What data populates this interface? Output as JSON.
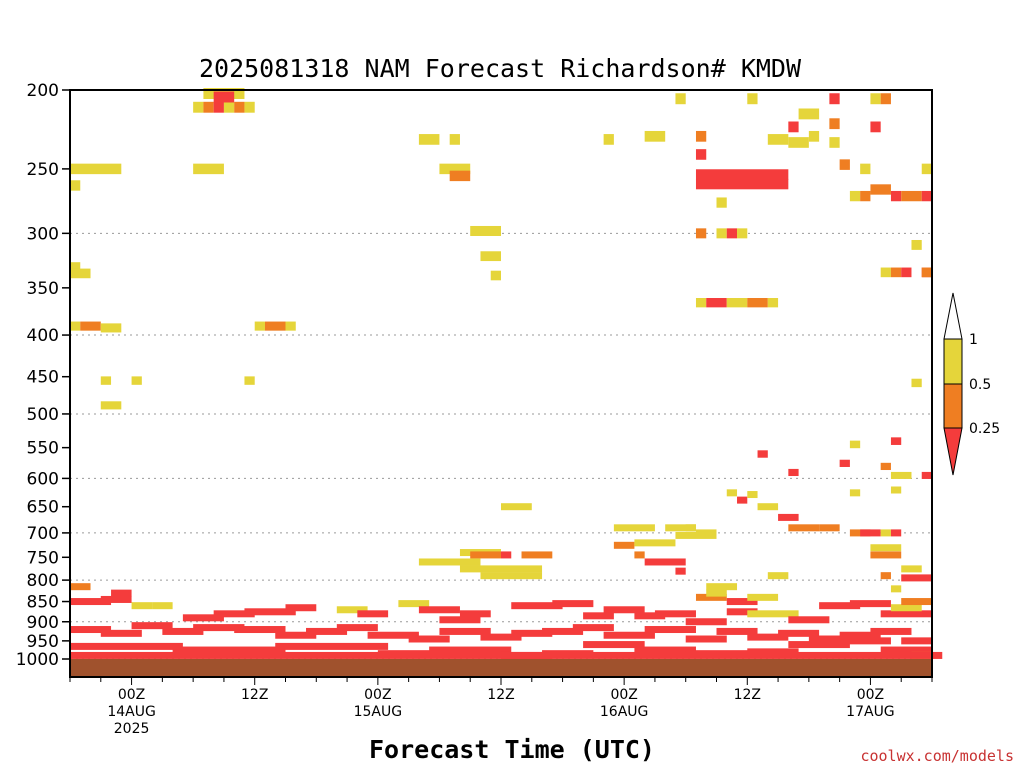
{
  "chart_data": {
    "type": "heatmap",
    "title": "2025081318 NAM Forecast Richardson# KMDW",
    "xlabel": "Forecast Time (UTC)",
    "ylabel": "",
    "credit": "coolwx.com/models",
    "y_scale": "log-pressure",
    "ylim": [
      1000,
      200
    ],
    "y_ticks": [
      200,
      250,
      300,
      350,
      400,
      450,
      500,
      550,
      600,
      650,
      700,
      750,
      800,
      850,
      900,
      950,
      1000
    ],
    "grid_levels": [
      300,
      400,
      500,
      600,
      700,
      800,
      900,
      1000
    ],
    "time_start": "2025-08-13 18Z",
    "time_step_hours": 1,
    "num_hours": 84,
    "x_ticks": [
      {
        "hour": 6,
        "lines": [
          "00Z",
          "14AUG",
          "2025"
        ]
      },
      {
        "hour": 18,
        "lines": [
          "12Z"
        ]
      },
      {
        "hour": 30,
        "lines": [
          "00Z",
          "15AUG"
        ]
      },
      {
        "hour": 42,
        "lines": [
          "12Z"
        ]
      },
      {
        "hour": 54,
        "lines": [
          "00Z",
          "16AUG"
        ]
      },
      {
        "hour": 66,
        "lines": [
          "12Z"
        ]
      },
      {
        "hour": 78,
        "lines": [
          "00Z",
          "17AUG"
        ]
      }
    ],
    "legend": {
      "placement": "right",
      "labels": [
        "1",
        "0.5",
        "0.25"
      ],
      "classes": [
        {
          "range": "> 1",
          "color": "#ffffff"
        },
        {
          "range": "0.5 - 1",
          "color": "#e5d53a"
        },
        {
          "range": "0.25 - 0.5",
          "color": "#ef7e22"
        },
        {
          "range": "< 0.25",
          "color": "#f43c3c"
        }
      ]
    },
    "ground_color": "#a0522d",
    "cells": [
      [
        12,
        12,
        210,
        "Y"
      ],
      [
        13,
        13,
        210,
        "O"
      ],
      [
        14,
        14,
        210,
        "R"
      ],
      [
        15,
        15,
        210,
        "Y"
      ],
      [
        16,
        16,
        210,
        "O"
      ],
      [
        17,
        17,
        210,
        "Y"
      ],
      [
        13,
        16,
        202,
        "Y"
      ],
      [
        14,
        15,
        204,
        "R"
      ],
      [
        0,
        4,
        250,
        "Y"
      ],
      [
        0,
        0,
        262,
        "Y"
      ],
      [
        12,
        14,
        250,
        "Y"
      ],
      [
        34,
        35,
        230,
        "Y"
      ],
      [
        37,
        37,
        230,
        "Y"
      ],
      [
        36,
        38,
        250,
        "Y"
      ],
      [
        37,
        38,
        255,
        "O"
      ],
      [
        52,
        52,
        230,
        "Y"
      ],
      [
        56,
        57,
        228,
        "Y"
      ],
      [
        59,
        59,
        205,
        "Y"
      ],
      [
        61,
        61,
        228,
        "O"
      ],
      [
        61,
        61,
        240,
        "R"
      ],
      [
        61,
        69,
        254,
        "R"
      ],
      [
        61,
        69,
        261,
        "R"
      ],
      [
        63,
        63,
        275,
        "Y"
      ],
      [
        66,
        66,
        205,
        "Y"
      ],
      [
        68,
        69,
        230,
        "Y"
      ],
      [
        70,
        70,
        222,
        "R"
      ],
      [
        70,
        71,
        232,
        "Y"
      ],
      [
        71,
        72,
        214,
        "Y"
      ],
      [
        72,
        72,
        228,
        "Y"
      ],
      [
        74,
        74,
        205,
        "R"
      ],
      [
        74,
        74,
        220,
        "O"
      ],
      [
        74,
        74,
        232,
        "Y"
      ],
      [
        75,
        75,
        247,
        "O"
      ],
      [
        76,
        76,
        270,
        "Y"
      ],
      [
        77,
        77,
        250,
        "Y"
      ],
      [
        77,
        77,
        270,
        "O"
      ],
      [
        78,
        78,
        205,
        "Y"
      ],
      [
        78,
        78,
        222,
        "R"
      ],
      [
        79,
        79,
        205,
        "O"
      ],
      [
        78,
        79,
        265,
        "O"
      ],
      [
        80,
        80,
        270,
        "R"
      ],
      [
        81,
        82,
        270,
        "O"
      ],
      [
        83,
        83,
        270,
        "R"
      ],
      [
        83,
        83,
        250,
        "Y"
      ],
      [
        0,
        0,
        330,
        "Y"
      ],
      [
        0,
        1,
        336,
        "Y"
      ],
      [
        0,
        0,
        390,
        "Y"
      ],
      [
        1,
        2,
        390,
        "O"
      ],
      [
        3,
        4,
        392,
        "Y"
      ],
      [
        18,
        18,
        390,
        "Y"
      ],
      [
        19,
        20,
        390,
        "O"
      ],
      [
        21,
        21,
        390,
        "Y"
      ],
      [
        3,
        3,
        455,
        "Y"
      ],
      [
        6,
        6,
        455,
        "Y"
      ],
      [
        17,
        17,
        455,
        "Y"
      ],
      [
        3,
        4,
        488,
        "Y"
      ],
      [
        39,
        41,
        298,
        "Y"
      ],
      [
        40,
        41,
        320,
        "Y"
      ],
      [
        41,
        41,
        338,
        "Y"
      ],
      [
        61,
        61,
        300,
        "O"
      ],
      [
        63,
        63,
        300,
        "Y"
      ],
      [
        64,
        64,
        300,
        "R"
      ],
      [
        65,
        65,
        300,
        "Y"
      ],
      [
        61,
        61,
        365,
        "Y"
      ],
      [
        62,
        63,
        365,
        "R"
      ],
      [
        64,
        65,
        365,
        "Y"
      ],
      [
        66,
        67,
        365,
        "O"
      ],
      [
        68,
        68,
        365,
        "Y"
      ],
      [
        79,
        79,
        335,
        "Y"
      ],
      [
        80,
        80,
        335,
        "O"
      ],
      [
        81,
        81,
        335,
        "R"
      ],
      [
        82,
        82,
        310,
        "Y"
      ],
      [
        83,
        83,
        335,
        "R"
      ],
      [
        83,
        83,
        335,
        "O"
      ],
      [
        82,
        82,
        458,
        "Y"
      ],
      [
        80,
        80,
        540,
        "R"
      ],
      [
        79,
        79,
        580,
        "O"
      ],
      [
        80,
        81,
        595,
        "Y"
      ],
      [
        83,
        83,
        595,
        "R"
      ],
      [
        67,
        67,
        560,
        "R"
      ],
      [
        70,
        70,
        590,
        "R"
      ],
      [
        75,
        75,
        575,
        "R"
      ],
      [
        76,
        76,
        545,
        "Y"
      ],
      [
        80,
        80,
        620,
        "Y"
      ],
      [
        76,
        76,
        625,
        "Y"
      ],
      [
        64,
        64,
        625,
        "Y"
      ],
      [
        65,
        65,
        638,
        "R"
      ],
      [
        66,
        66,
        628,
        "Y"
      ],
      [
        67,
        68,
        650,
        "Y"
      ],
      [
        69,
        70,
        670,
        "R"
      ],
      [
        70,
        72,
        690,
        "O"
      ],
      [
        73,
        74,
        690,
        "O"
      ],
      [
        76,
        77,
        700,
        "O"
      ],
      [
        77,
        78,
        700,
        "R"
      ],
      [
        79,
        79,
        700,
        "Y"
      ],
      [
        80,
        80,
        700,
        "R"
      ],
      [
        78,
        80,
        730,
        "Y"
      ],
      [
        78,
        80,
        745,
        "O"
      ],
      [
        81,
        82,
        775,
        "Y"
      ],
      [
        81,
        83,
        795,
        "R"
      ],
      [
        79,
        79,
        790,
        "O"
      ],
      [
        80,
        80,
        820,
        "Y"
      ],
      [
        53,
        56,
        690,
        "Y"
      ],
      [
        53,
        54,
        725,
        "O"
      ],
      [
        55,
        58,
        720,
        "Y"
      ],
      [
        55,
        55,
        745,
        "O"
      ],
      [
        56,
        59,
        760,
        "R"
      ],
      [
        58,
        60,
        690,
        "Y"
      ],
      [
        59,
        59,
        780,
        "R"
      ],
      [
        59,
        62,
        705,
        "Y"
      ],
      [
        60,
        60,
        690,
        "Y"
      ],
      [
        61,
        62,
        700,
        "Y"
      ],
      [
        42,
        44,
        650,
        "Y"
      ],
      [
        38,
        41,
        740,
        "Y"
      ],
      [
        39,
        41,
        745,
        "O"
      ],
      [
        42,
        42,
        745,
        "R"
      ],
      [
        44,
        46,
        745,
        "O"
      ],
      [
        34,
        39,
        760,
        "Y"
      ],
      [
        38,
        45,
        775,
        "Y"
      ],
      [
        40,
        45,
        790,
        "Y"
      ],
      [
        68,
        69,
        790,
        "Y"
      ],
      [
        62,
        64,
        815,
        "Y"
      ],
      [
        61,
        63,
        840,
        "O"
      ],
      [
        62,
        63,
        830,
        "Y"
      ],
      [
        64,
        66,
        850,
        "R"
      ],
      [
        66,
        68,
        840,
        "Y"
      ],
      [
        0,
        1,
        815,
        "O"
      ],
      [
        0,
        3,
        850,
        "R"
      ],
      [
        3,
        5,
        845,
        "R"
      ],
      [
        4,
        5,
        830,
        "R"
      ],
      [
        6,
        7,
        860,
        "Y"
      ],
      [
        8,
        9,
        860,
        "Y"
      ],
      [
        11,
        14,
        890,
        "R"
      ],
      [
        14,
        17,
        880,
        "R"
      ],
      [
        17,
        21,
        875,
        "R"
      ],
      [
        21,
        23,
        865,
        "R"
      ],
      [
        26,
        28,
        870,
        "Y"
      ],
      [
        28,
        30,
        880,
        "R"
      ],
      [
        32,
        34,
        855,
        "Y"
      ],
      [
        34,
        37,
        870,
        "R"
      ],
      [
        36,
        39,
        895,
        "R"
      ],
      [
        38,
        40,
        880,
        "R"
      ],
      [
        43,
        47,
        860,
        "R"
      ],
      [
        47,
        50,
        855,
        "R"
      ],
      [
        50,
        52,
        885,
        "R"
      ],
      [
        52,
        55,
        870,
        "R"
      ],
      [
        55,
        57,
        885,
        "R"
      ],
      [
        57,
        60,
        880,
        "R"
      ],
      [
        60,
        63,
        900,
        "R"
      ],
      [
        64,
        66,
        875,
        "R"
      ],
      [
        66,
        70,
        880,
        "Y"
      ],
      [
        70,
        73,
        895,
        "R"
      ],
      [
        73,
        76,
        860,
        "R"
      ],
      [
        76,
        79,
        855,
        "R"
      ],
      [
        79,
        83,
        880,
        "R"
      ],
      [
        80,
        82,
        865,
        "Y"
      ],
      [
        81,
        83,
        850,
        "O"
      ],
      [
        0,
        3,
        920,
        "R"
      ],
      [
        3,
        6,
        930,
        "R"
      ],
      [
        6,
        9,
        910,
        "R"
      ],
      [
        9,
        12,
        925,
        "R"
      ],
      [
        12,
        16,
        915,
        "R"
      ],
      [
        16,
        20,
        920,
        "R"
      ],
      [
        20,
        23,
        935,
        "R"
      ],
      [
        23,
        26,
        925,
        "R"
      ],
      [
        26,
        29,
        915,
        "R"
      ],
      [
        29,
        33,
        935,
        "R"
      ],
      [
        33,
        36,
        945,
        "R"
      ],
      [
        36,
        40,
        925,
        "R"
      ],
      [
        40,
        43,
        940,
        "R"
      ],
      [
        43,
        46,
        930,
        "R"
      ],
      [
        46,
        49,
        925,
        "R"
      ],
      [
        49,
        52,
        915,
        "R"
      ],
      [
        52,
        56,
        935,
        "R"
      ],
      [
        56,
        60,
        920,
        "R"
      ],
      [
        60,
        63,
        945,
        "R"
      ],
      [
        63,
        66,
        925,
        "R"
      ],
      [
        66,
        69,
        940,
        "R"
      ],
      [
        69,
        72,
        930,
        "R"
      ],
      [
        72,
        75,
        945,
        "R"
      ],
      [
        75,
        78,
        935,
        "R"
      ],
      [
        78,
        81,
        925,
        "R"
      ],
      [
        81,
        83,
        950,
        "R"
      ],
      [
        0,
        10,
        965,
        "R"
      ],
      [
        10,
        20,
        975,
        "R"
      ],
      [
        20,
        30,
        965,
        "R"
      ],
      [
        30,
        35,
        985,
        "R"
      ],
      [
        35,
        42,
        975,
        "R"
      ],
      [
        42,
        46,
        990,
        "R"
      ],
      [
        46,
        50,
        985,
        "R"
      ],
      [
        50,
        55,
        960,
        "R"
      ],
      [
        55,
        60,
        975,
        "R"
      ],
      [
        60,
        66,
        985,
        "R"
      ],
      [
        66,
        70,
        980,
        "R"
      ],
      [
        70,
        75,
        960,
        "R"
      ],
      [
        75,
        79,
        950,
        "R"
      ],
      [
        79,
        83,
        975,
        "R"
      ],
      [
        82,
        83,
        990,
        "Y"
      ],
      [
        0,
        84,
        990,
        "R"
      ]
    ]
  }
}
